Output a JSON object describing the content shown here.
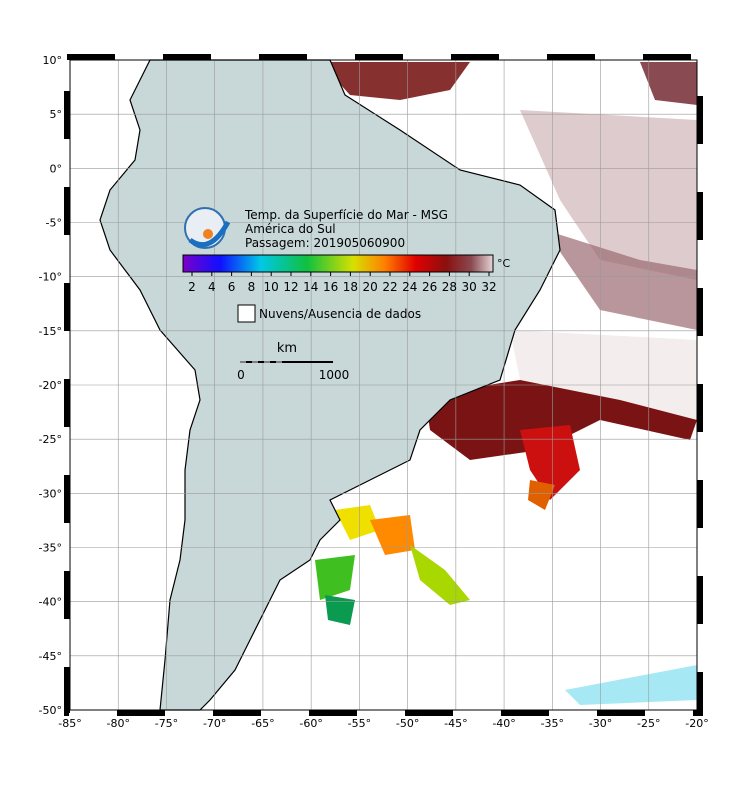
{
  "map": {
    "title": "Temp. da Superfície do Mar - MSG",
    "region": "América do Sul",
    "pass": "Passagem: 201905060900",
    "colorbar": {
      "ticks": [
        "2",
        "4",
        "6",
        "8",
        "10",
        "12",
        "14",
        "16",
        "18",
        "20",
        "22",
        "24",
        "26",
        "28",
        "30",
        "32"
      ],
      "unit": "°C"
    },
    "legend": "Nuvens/Ausencia de dados",
    "scale": {
      "unit": "km",
      "start": "0",
      "end": "1000"
    },
    "lon_ticks": [
      "-85°",
      "-80°",
      "-75°",
      "-70°",
      "-65°",
      "-60°",
      "-55°",
      "-50°",
      "-45°",
      "-40°",
      "-35°",
      "-30°",
      "-25°",
      "-20°"
    ],
    "lat_ticks": [
      "10°",
      "5°",
      "0°",
      "-5°",
      "-10°",
      "-15°",
      "-20°",
      "-25°",
      "-30°",
      "-35°",
      "-40°",
      "-45°",
      "-50°"
    ]
  }
}
